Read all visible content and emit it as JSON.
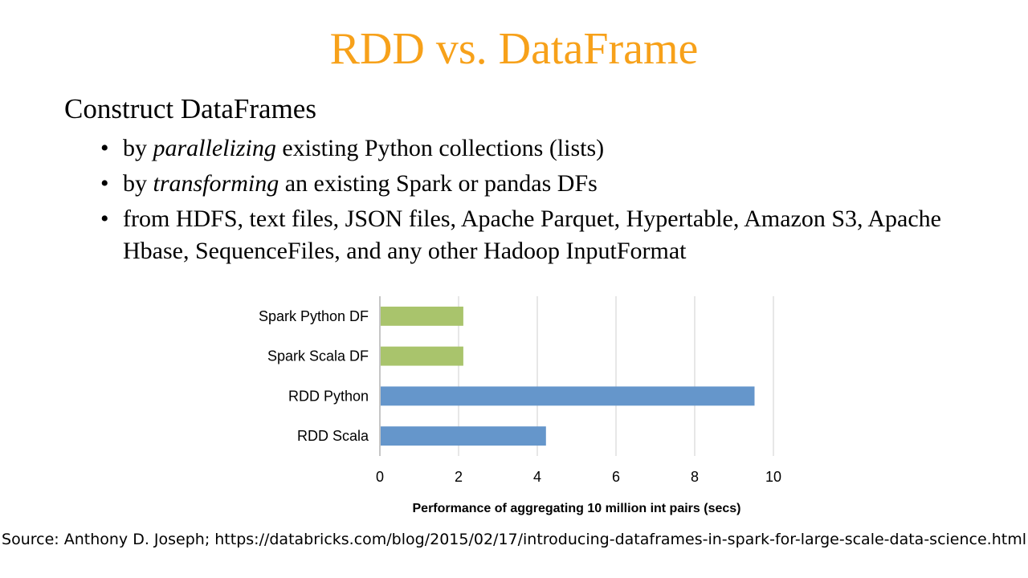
{
  "slide": {
    "title": "RDD vs. DataFrame",
    "heading": "Construct DataFrames",
    "bullets": [
      {
        "pre": "by ",
        "em": "parallelizing",
        "post": " existing Python collections (lists)"
      },
      {
        "pre": "by ",
        "em": "transforming",
        "post": " an existing Spark or pandas DFs"
      },
      {
        "pre": "from HDFS, text files, JSON files, Apache Parquet, Hypertable, Amazon S3, Apache Hbase, SequenceFiles, and any other Hadoop InputFormat",
        "em": "",
        "post": ""
      }
    ],
    "bullet_glyph": "•",
    "source": "Source: Anthony D. Joseph; https://databricks.com/blog/2015/02/17/introducing-dataframes-in-spark-for-large-scale-data-science.html"
  },
  "chart_data": {
    "type": "bar",
    "orientation": "horizontal",
    "categories": [
      "Spark Python DF",
      "Spark Scala DF",
      "RDD Python",
      "RDD Scala"
    ],
    "values": [
      2.1,
      2.1,
      9.5,
      4.2
    ],
    "bar_colors": [
      "#a9c46c",
      "#a9c46c",
      "#6596cb",
      "#6596cb"
    ],
    "xlabel": "Performance of aggregating 10 million int pairs (secs)",
    "ylabel": "",
    "xlim": [
      0,
      10
    ],
    "xticks": [
      "0",
      "2",
      "4",
      "6",
      "8",
      "10"
    ],
    "grid": true,
    "legend": "none"
  }
}
